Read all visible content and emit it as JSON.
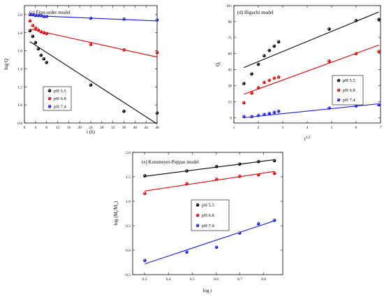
{
  "chart_data": [
    {
      "id": "first-order",
      "type": "scatter",
      "title": "(c) First-order model",
      "xlabel": "t (h)",
      "ylabel": "log Q",
      "xlim": [
        0,
        48
      ],
      "ylim": [
        0.8,
        2.1
      ],
      "xticks": [
        0,
        4,
        8,
        12,
        16,
        20,
        24,
        28,
        32,
        36,
        40,
        44,
        48
      ],
      "yticks": [
        0.8,
        1.0,
        1.2,
        1.4,
        1.6,
        1.8,
        2.0
      ],
      "xtick_labels": [
        "0",
        "4",
        "8",
        "12",
        "16",
        "20",
        "24",
        "28",
        "32",
        "36",
        "40",
        "44",
        "48"
      ],
      "ytick_labels": [
        "0.8",
        "1.0",
        "1.2",
        "1.4",
        "1.6",
        "1.8",
        "2.0"
      ],
      "legend": "center-left",
      "series": [
        {
          "name": "pH 5.5",
          "color": "#000000",
          "x": [
            2,
            3,
            4,
            5,
            6,
            7,
            8,
            24,
            36,
            48
          ],
          "y": [
            1.82,
            1.76,
            1.69,
            1.62,
            1.55,
            1.51,
            1.47,
            1.22,
            0.93,
            0.91
          ],
          "fit": [
            [
              2,
              1.7
            ],
            [
              48,
              0.79
            ]
          ]
        },
        {
          "name": "pH 6.8",
          "color": "#e00000",
          "x": [
            2,
            3,
            4,
            5,
            6,
            7,
            8,
            24,
            36,
            48
          ],
          "y": [
            1.93,
            1.88,
            1.85,
            1.83,
            1.81,
            1.8,
            1.79,
            1.67,
            1.61,
            1.58
          ],
          "fit": [
            [
              2,
              1.84
            ],
            [
              48,
              1.53
            ]
          ]
        },
        {
          "name": "pH 7.4",
          "color": "#1a1ae6",
          "x": [
            2,
            3,
            4,
            5,
            6,
            7,
            8,
            24,
            36,
            48
          ],
          "y": [
            2.0,
            2.0,
            1.99,
            1.99,
            1.99,
            1.98,
            1.98,
            1.96,
            1.95,
            1.94
          ],
          "fit": [
            [
              2,
              1.99
            ],
            [
              48,
              1.93
            ]
          ]
        }
      ]
    },
    {
      "id": "higuchi",
      "type": "scatter",
      "title": "(d) Higuchi model",
      "xlabel": "t",
      "xlabel_sup": "1/2",
      "ylabel": "Q",
      "ylabel_sub": "t",
      "xlim": [
        1,
        7
      ],
      "ylim": [
        -5,
        105
      ],
      "xticks": [
        1,
        2,
        3,
        4,
        5,
        6,
        7
      ],
      "yticks": [
        0,
        15,
        30,
        45,
        60,
        75,
        90,
        105
      ],
      "xtick_labels": [
        "1",
        "2",
        "3",
        "4",
        "5",
        "6",
        "7"
      ],
      "ytick_labels": [
        "0",
        "15",
        "30",
        "45",
        "60",
        "75",
        "90",
        "105"
      ],
      "legend": "center-right",
      "series": [
        {
          "name": "pH 5.5",
          "color": "#000000",
          "x": [
            1.41,
            1.73,
            2.0,
            2.24,
            2.45,
            2.65,
            2.83,
            4.9,
            6.0,
            6.93
          ],
          "y": [
            32,
            41,
            50,
            58,
            63,
            67,
            71,
            83,
            91,
            92
          ],
          "fit": [
            [
              1.41,
              47
            ],
            [
              6.93,
              99
            ]
          ]
        },
        {
          "name": "pH 6.8",
          "color": "#e00000",
          "x": [
            1.41,
            1.73,
            2.0,
            2.24,
            2.45,
            2.65,
            2.83,
            4.9,
            6.0,
            6.93
          ],
          "y": [
            14,
            23,
            28,
            33,
            35,
            37,
            38,
            53,
            60,
            62
          ],
          "fit": [
            [
              1.41,
              22
            ],
            [
              6.93,
              68
            ]
          ]
        },
        {
          "name": "pH 7.4",
          "color": "#1a1ae6",
          "x": [
            1.41,
            1.73,
            2.0,
            2.24,
            2.45,
            2.65,
            2.83,
            4.9,
            6.0,
            6.93
          ],
          "y": [
            1,
            1,
            2,
            3,
            4,
            5,
            6,
            9,
            11,
            12
          ],
          "fit": [
            [
              1.41,
              0
            ],
            [
              6.93,
              13
            ]
          ]
        }
      ]
    },
    {
      "id": "korsmeyer-peppas",
      "type": "scatter",
      "title": "(e) Korsmeyer-Peppas model",
      "xlabel": "log t",
      "ylabel": "log (M",
      "ylabel_sub1": "t",
      "ylabel_mid": "/M",
      "ylabel_sub2": "∞",
      "ylabel_end": ")",
      "xlim": [
        0.25,
        0.88
      ],
      "ylim": [
        -0.5,
        2.0
      ],
      "xticks": [
        0.3,
        0.4,
        0.5,
        0.6,
        0.7,
        0.8
      ],
      "yticks": [
        -0.5,
        0.0,
        0.5,
        1.0,
        1.5,
        2.0
      ],
      "xtick_labels": [
        "0.3",
        "0.4",
        "0.5",
        "0.6",
        "0.7",
        "0.8"
      ],
      "ytick_labels": [
        "-0.5",
        "0.0",
        "0.5",
        "1.0",
        "1.5",
        "2.0"
      ],
      "legend": "center-right",
      "series": [
        {
          "name": "pH 5.5",
          "color": "#000000",
          "x": [
            0.301,
            0.477,
            0.602,
            0.699,
            0.778,
            0.845
          ],
          "y": [
            1.52,
            1.62,
            1.71,
            1.76,
            1.81,
            1.83
          ],
          "fit": [
            [
              0.301,
              1.51
            ],
            [
              0.845,
              1.85
            ]
          ]
        },
        {
          "name": "pH 6.8",
          "color": "#e00000",
          "x": [
            0.301,
            0.477,
            0.602,
            0.699,
            0.778,
            0.845
          ],
          "y": [
            1.16,
            1.36,
            1.45,
            1.51,
            1.54,
            1.57
          ],
          "fit": [
            [
              0.301,
              1.21
            ],
            [
              0.845,
              1.61
            ]
          ]
        },
        {
          "name": "pH 7.4",
          "color": "#1a1ae6",
          "x": [
            0.301,
            0.477,
            0.602,
            0.699,
            0.778,
            0.845
          ],
          "y": [
            -0.21,
            -0.04,
            0.06,
            0.35,
            0.54,
            0.61
          ],
          "fit": [
            [
              0.301,
              -0.28
            ],
            [
              0.845,
              0.6
            ]
          ]
        }
      ]
    }
  ]
}
